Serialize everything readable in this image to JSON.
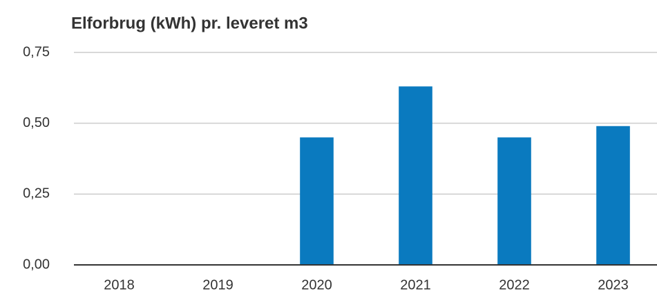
{
  "chart_data": {
    "type": "bar",
    "title": "Elforbrug (kWh) pr. leveret m3",
    "categories": [
      "2018",
      "2019",
      "2020",
      "2021",
      "2022",
      "2023"
    ],
    "values": [
      null,
      null,
      0.45,
      0.63,
      0.45,
      0.49
    ],
    "color": "#0a7abf",
    "ylim": [
      0,
      0.75
    ],
    "yticks": [
      {
        "value": 0,
        "label": "0,00"
      },
      {
        "value": 0.25,
        "label": "0,25"
      },
      {
        "value": 0.5,
        "label": "0,50"
      },
      {
        "value": 0.75,
        "label": "0,75"
      }
    ],
    "grid": true
  }
}
